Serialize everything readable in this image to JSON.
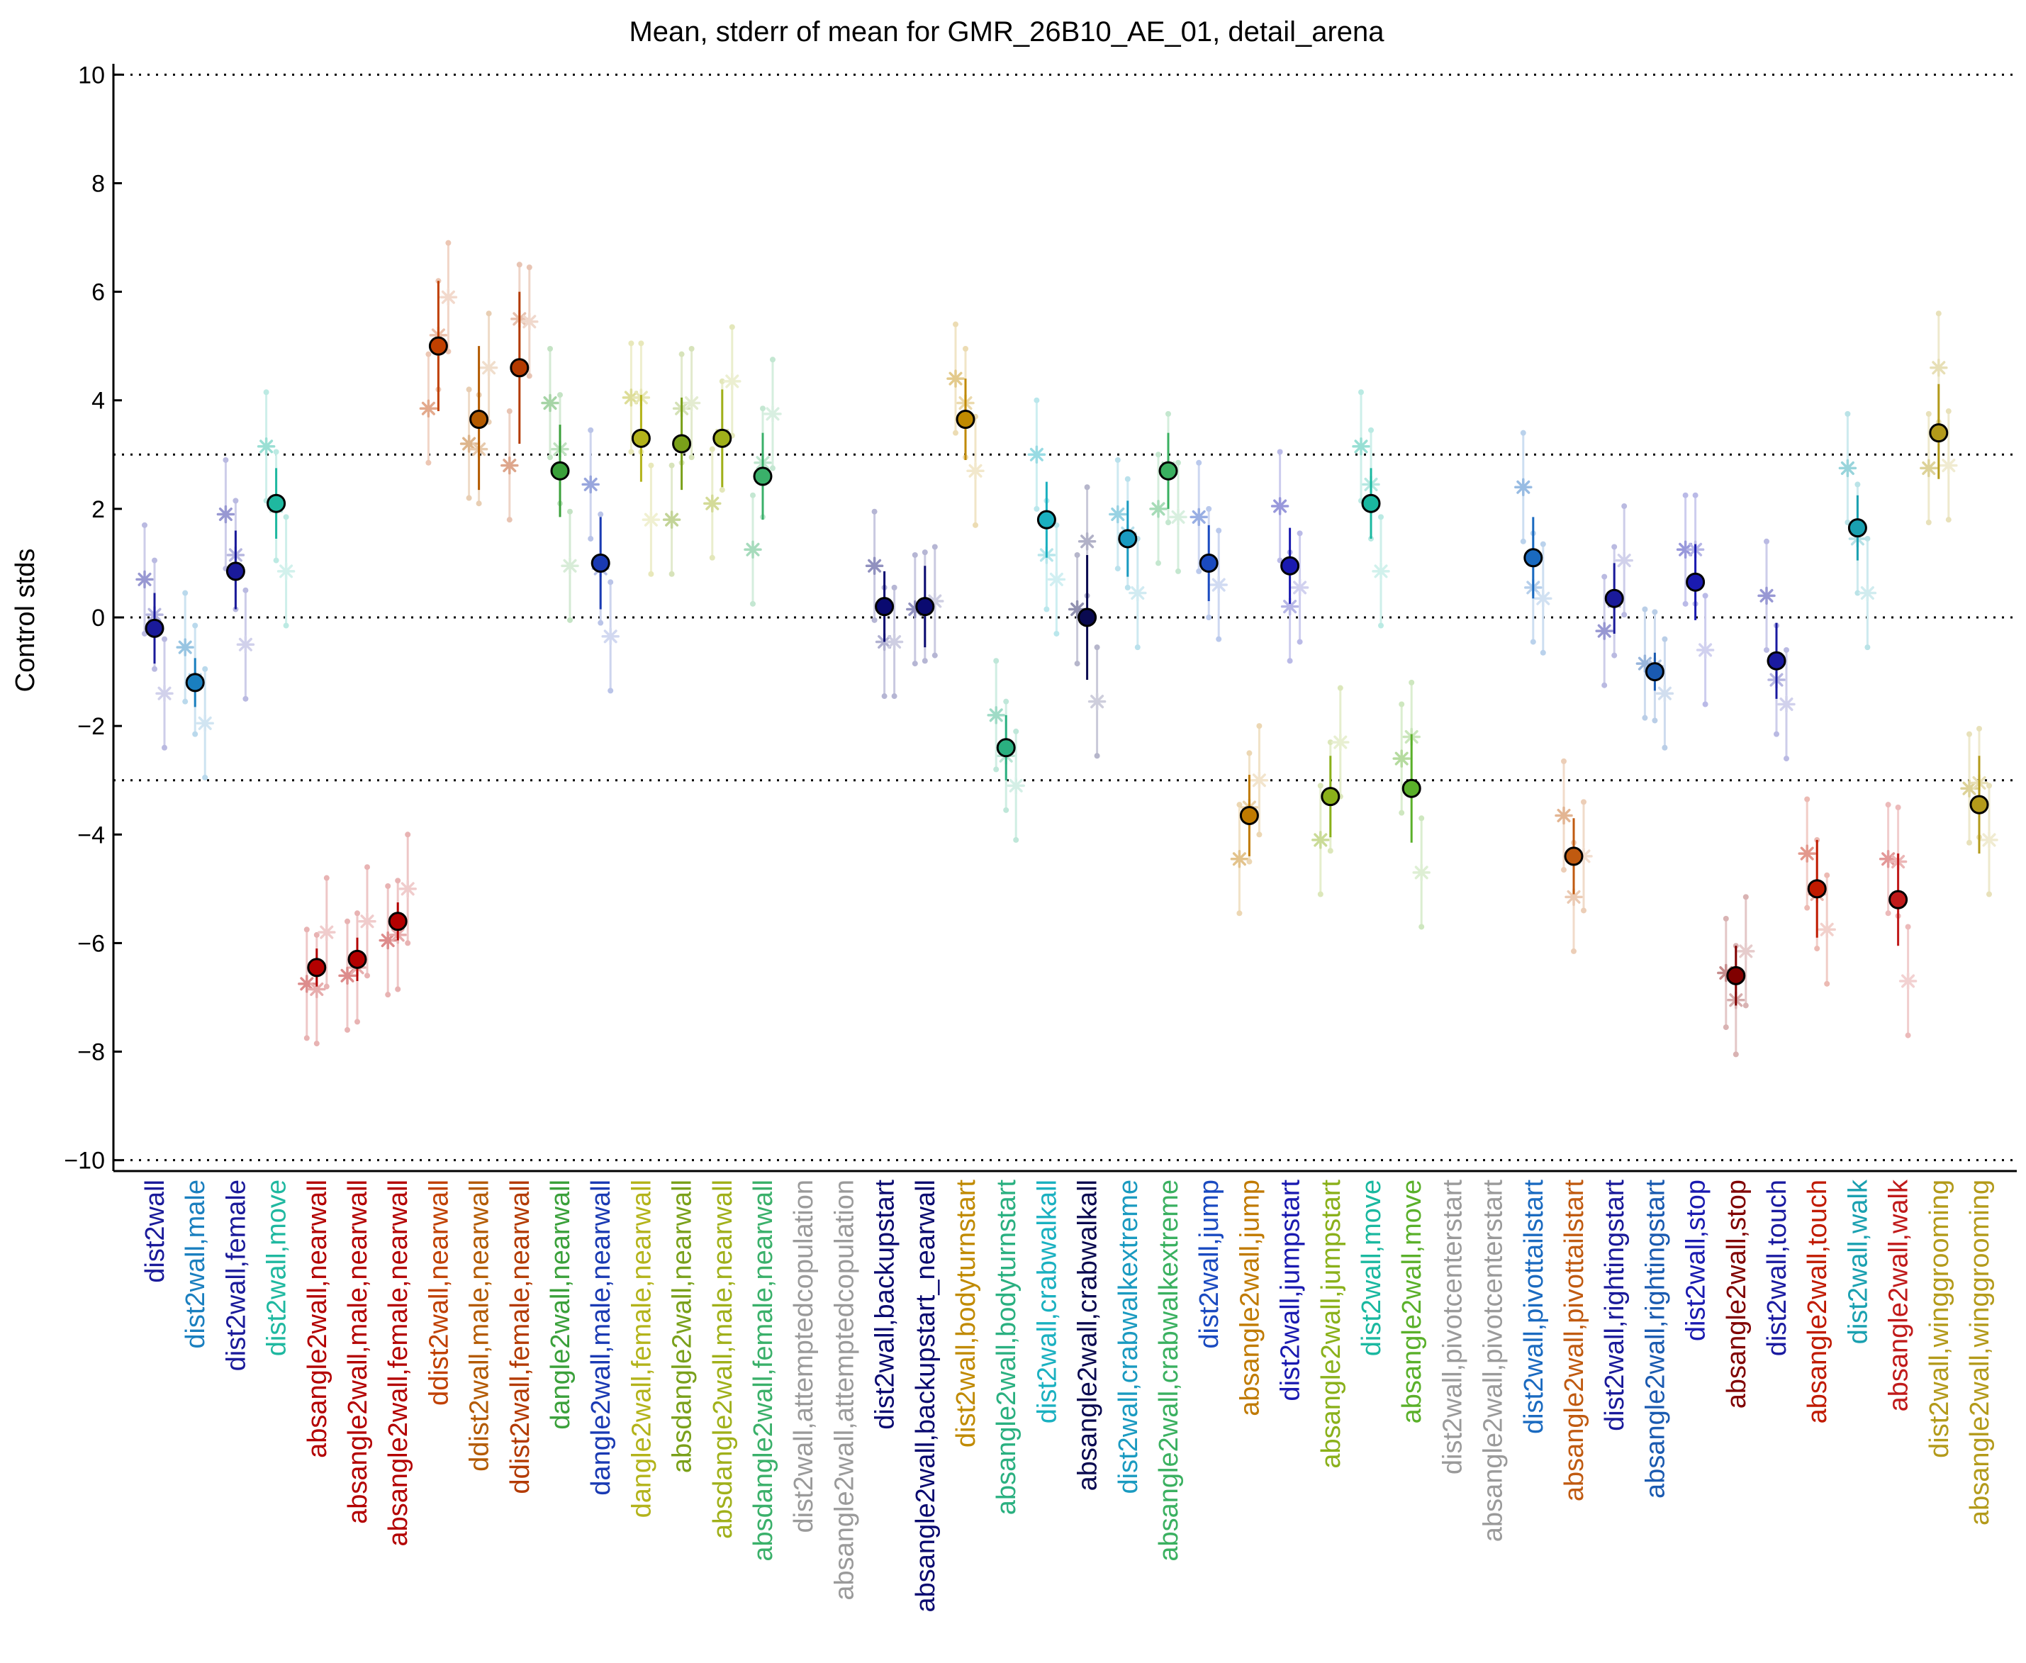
{
  "chart_data": {
    "type": "scatter",
    "title": "Mean, stderr of mean for GMR_26B10_AE_01, detail_arena",
    "xlabel": "",
    "ylabel": "Control stds",
    "ylim": [
      -10.2,
      10.2
    ],
    "yticks": [
      10,
      8,
      6,
      4,
      2,
      0,
      -2,
      -4,
      -6,
      -8,
      -10
    ],
    "reference_lines": [
      10,
      3,
      0,
      -3,
      -10
    ],
    "grid": false,
    "legend": "none",
    "categories": [
      {
        "label": "dist2wall",
        "color": "#1a1a9a"
      },
      {
        "label": "dist2wall,male",
        "color": "#1a7fbf"
      },
      {
        "label": "dist2wall,female",
        "color": "#1a1a9a"
      },
      {
        "label": "dist2wall,move",
        "color": "#1fb8a0"
      },
      {
        "label": "absangle2wall,nearwall",
        "color": "#b30000"
      },
      {
        "label": "absangle2wall,male,nearwall",
        "color": "#b30000"
      },
      {
        "label": "absangle2wall,female,nearwall",
        "color": "#b30000"
      },
      {
        "label": "ddist2wall,nearwall",
        "color": "#c04000"
      },
      {
        "label": "ddist2wall,male,nearwall",
        "color": "#b35a00"
      },
      {
        "label": "ddist2wall,female,nearwall",
        "color": "#b33a00"
      },
      {
        "label": "dangle2wall,nearwall",
        "color": "#3aa03a"
      },
      {
        "label": "dangle2wall,male,nearwall",
        "color": "#1a3ab3"
      },
      {
        "label": "dangle2wall,female,nearwall",
        "color": "#b3b31a"
      },
      {
        "label": "absdangle2wall,nearwall",
        "color": "#7aa01a"
      },
      {
        "label": "absdangle2wall,male,nearwall",
        "color": "#a0b01a"
      },
      {
        "label": "absdangle2wall,female,nearwall",
        "color": "#3ab06a"
      },
      {
        "label": "dist2wall,attemptedcopulation",
        "color": "#9a9a9a"
      },
      {
        "label": "absangle2wall,attemptedcopulation",
        "color": "#9a9a9a"
      },
      {
        "label": "dist2wall,backupstart",
        "color": "#0a0a70"
      },
      {
        "label": "absangle2wall,backupstart_nearwall",
        "color": "#0a0a70"
      },
      {
        "label": "dist2wall,bodyturnstart",
        "color": "#c08a00"
      },
      {
        "label": "absangle2wall,bodyturnstart",
        "color": "#2ab080"
      },
      {
        "label": "dist2wall,crabwalkall",
        "color": "#1ab0c0"
      },
      {
        "label": "absangle2wall,crabwalkall",
        "color": "#0a0a50"
      },
      {
        "label": "dist2wall,crabwalkextreme",
        "color": "#1a9ac0"
      },
      {
        "label": "absangle2wall,crabwalkextreme",
        "color": "#3ab060"
      },
      {
        "label": "dist2wall,jump",
        "color": "#1a4ac0"
      },
      {
        "label": "absangle2wall,jump",
        "color": "#c07a00"
      },
      {
        "label": "dist2wall,jumpstart",
        "color": "#1a1ab0"
      },
      {
        "label": "absangle2wall,jumpstart",
        "color": "#8ab01a"
      },
      {
        "label": "dist2wall,move",
        "color": "#1ab8a0"
      },
      {
        "label": "absangle2wall,move",
        "color": "#5ab02a"
      },
      {
        "label": "dist2wall,pivotcenterstart",
        "color": "#9a9a9a"
      },
      {
        "label": "absangle2wall,pivotcenterstart",
        "color": "#9a9a9a"
      },
      {
        "label": "dist2wall,pivottailstart",
        "color": "#1a6ac0"
      },
      {
        "label": "absangle2wall,pivottailstart",
        "color": "#c05a10"
      },
      {
        "label": "dist2wall,rightingstart",
        "color": "#1a1a9a"
      },
      {
        "label": "absangle2wall,rightingstart",
        "color": "#1a5ab0"
      },
      {
        "label": "dist2wall,stop",
        "color": "#1a1ab0"
      },
      {
        "label": "absangle2wall,stop",
        "color": "#800000"
      },
      {
        "label": "dist2wall,touch",
        "color": "#1a1aa0"
      },
      {
        "label": "absangle2wall,touch",
        "color": "#c01a00"
      },
      {
        "label": "dist2wall,walk",
        "color": "#1aa0b0"
      },
      {
        "label": "absangle2wall,walk",
        "color": "#c01a1a"
      },
      {
        "label": "dist2wall,winggrooming",
        "color": "#b39a1a"
      },
      {
        "label": "absangle2wall,winggrooming",
        "color": "#b39a1a"
      }
    ],
    "series": [
      {
        "values": [
          -0.2,
          -1.2,
          0.85,
          2.1,
          -6.45,
          -6.3,
          -5.6,
          5.0,
          3.65,
          4.6,
          2.7,
          1.0,
          3.3,
          3.2,
          3.3,
          2.6,
          null,
          null,
          0.2,
          0.2,
          3.65,
          -2.4,
          1.8,
          0.0,
          1.45,
          2.7,
          1.0,
          -3.65,
          0.95,
          -3.3,
          2.1,
          -3.15,
          null,
          null,
          1.1,
          -4.4,
          0.35,
          -1.0,
          0.65,
          -6.6,
          -0.8,
          -5.0,
          1.65,
          -5.2,
          3.4,
          -3.45
        ],
        "err_low": [
          -0.85,
          -1.65,
          0.15,
          1.45,
          -6.8,
          -6.7,
          -5.95,
          3.8,
          2.35,
          3.2,
          1.85,
          0.15,
          2.5,
          2.35,
          2.4,
          1.8,
          null,
          null,
          -0.45,
          -0.55,
          2.9,
          -3.0,
          1.1,
          -1.15,
          0.75,
          2.0,
          0.3,
          -4.4,
          0.25,
          -4.05,
          1.45,
          -4.15,
          null,
          null,
          0.35,
          -5.1,
          -0.3,
          -1.35,
          -0.05,
          -7.15,
          -1.5,
          -5.9,
          1.05,
          -6.05,
          2.55,
          -4.35
        ],
        "err_high": [
          0.45,
          -0.75,
          1.6,
          2.75,
          -6.1,
          -5.9,
          -5.25,
          6.2,
          5.0,
          6.0,
          3.55,
          1.85,
          4.1,
          4.05,
          4.2,
          3.4,
          null,
          null,
          0.85,
          0.95,
          4.4,
          -1.8,
          2.5,
          1.15,
          2.15,
          3.4,
          1.7,
          -2.9,
          1.65,
          -2.55,
          2.75,
          -2.15,
          null,
          null,
          1.85,
          -3.7,
          1.0,
          -0.65,
          1.35,
          -6.05,
          -0.1,
          -4.1,
          2.25,
          -4.35,
          4.3,
          -2.55
        ]
      },
      {
        "values": [
          0.7,
          -0.55,
          1.9,
          3.15,
          -6.75,
          -6.6,
          -5.95,
          3.85,
          3.2,
          2.8,
          3.95,
          2.45,
          4.05,
          1.8,
          2.1,
          1.25,
          null,
          null,
          0.95,
          0.15,
          4.4,
          -1.8,
          3.0,
          0.15,
          1.9,
          2.0,
          1.85,
          -4.45,
          2.05,
          -4.1,
          3.15,
          -2.6,
          null,
          null,
          2.4,
          -3.65,
          -0.25,
          -0.85,
          1.25,
          -6.55,
          0.4,
          -4.35,
          2.75,
          -4.45,
          2.75,
          -3.15
        ]
      },
      {
        "values": [
          0.05,
          -1.15,
          1.15,
          2.05,
          -6.85,
          -6.45,
          -5.85,
          5.2,
          3.1,
          5.5,
          3.1,
          0.9,
          4.05,
          3.85,
          3.35,
          2.85,
          null,
          null,
          -0.45,
          0.2,
          3.95,
          -2.55,
          1.15,
          1.4,
          1.55,
          2.75,
          1.0,
          -3.5,
          0.2,
          -3.3,
          2.45,
          -2.2,
          null,
          null,
          0.55,
          -5.15,
          0.3,
          -0.9,
          1.25,
          -7.05,
          -1.15,
          -5.1,
          1.45,
          -4.5,
          4.6,
          -3.05
        ]
      },
      {
        "values": [
          -1.4,
          -1.95,
          -0.5,
          0.85,
          -5.8,
          -5.6,
          -5.0,
          5.9,
          4.6,
          5.45,
          0.95,
          -0.35,
          1.8,
          3.95,
          4.35,
          3.75,
          null,
          null,
          -0.45,
          0.3,
          2.7,
          -3.1,
          0.7,
          -1.55,
          0.45,
          1.85,
          0.6,
          -3.0,
          0.55,
          -2.3,
          0.85,
          -4.7,
          null,
          null,
          0.35,
          -4.4,
          1.05,
          -1.4,
          -0.6,
          -6.15,
          -1.6,
          -5.75,
          0.45,
          -6.7,
          2.8,
          -4.1
        ]
      }
    ]
  }
}
